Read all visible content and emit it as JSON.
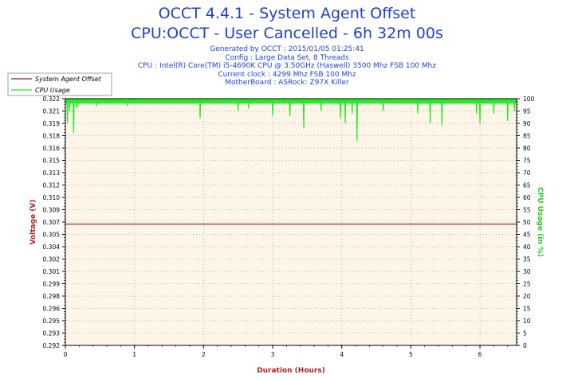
{
  "header": {
    "title": "OCCT 4.4.1 - System Agent Offset",
    "subtitle": "CPU:OCCT - User Cancelled - 6h 32m 00s",
    "info_lines": [
      "Generated by OCCT : 2015/01/05 01:25:41",
      "Config : Large Data Set, 8 Threads",
      "CPU : Intel(R) Core(TM) i5-4690K CPU @ 3.50GHz (Haswell) 3500 Mhz FSB 100 Mhz",
      "Current clock : 4299 Mhz FSB 100 Mhz",
      "MotherBoard : ASRock: Z97X Killer"
    ]
  },
  "colors": {
    "title": "#1f3fd0",
    "voltage_series": "#8b2020",
    "cpu_series": "#22ee22",
    "plot_bg": "#fdf5e8",
    "left_axis_label": "#b02020",
    "right_axis_label": "#22cc22",
    "x_axis_label": "#b02020"
  },
  "chart_data": {
    "type": "line",
    "xlabel": "Duration (Hours)",
    "ylabel": "Voltage (V)",
    "y2label": "CPU Usage (in %)",
    "xlim": [
      0,
      6.53
    ],
    "ylim": [
      0.292,
      0.3225
    ],
    "y2lim": [
      0,
      100
    ],
    "x_ticks": [
      "0",
      "1",
      "2",
      "3",
      "4",
      "5",
      "6"
    ],
    "y_ticks": [
      "0.322",
      "0.321",
      "0.319",
      "0.318",
      "0.316",
      "0.315",
      "0.313",
      "0.312",
      "0.310",
      "0.309",
      "0.307",
      "0.305",
      "0.304",
      "0.302",
      "0.301",
      "0.299",
      "0.298",
      "0.296",
      "0.295",
      "0.293",
      "0.292"
    ],
    "y2_ticks": [
      "100",
      "95",
      "90",
      "85",
      "80",
      "75",
      "70",
      "65",
      "60",
      "55",
      "50",
      "45",
      "40",
      "35",
      "30",
      "25",
      "20",
      "15",
      "10",
      "5",
      "0"
    ],
    "grid": true,
    "legend_position": "top-left",
    "series": [
      {
        "name": "System Agent Offset",
        "axis": "left",
        "x": [
          0,
          6.53
        ],
        "values": [
          0.307,
          0.307
        ]
      },
      {
        "name": "CPU Usage",
        "axis": "right",
        "baseline": 99,
        "dips": [
          {
            "x": 0.03,
            "value": 90
          },
          {
            "x": 0.06,
            "value": 95
          },
          {
            "x": 0.12,
            "value": 86
          },
          {
            "x": 0.17,
            "value": 96
          },
          {
            "x": 0.45,
            "value": 97
          },
          {
            "x": 0.9,
            "value": 97
          },
          {
            "x": 1.95,
            "value": 92
          },
          {
            "x": 2.5,
            "value": 95
          },
          {
            "x": 2.65,
            "value": 96
          },
          {
            "x": 3.0,
            "value": 93
          },
          {
            "x": 3.25,
            "value": 93
          },
          {
            "x": 3.45,
            "value": 88
          },
          {
            "x": 3.7,
            "value": 95
          },
          {
            "x": 3.98,
            "value": 92
          },
          {
            "x": 4.05,
            "value": 90
          },
          {
            "x": 4.15,
            "value": 94
          },
          {
            "x": 4.22,
            "value": 83
          },
          {
            "x": 4.6,
            "value": 95
          },
          {
            "x": 5.1,
            "value": 94
          },
          {
            "x": 5.28,
            "value": 90
          },
          {
            "x": 5.45,
            "value": 89
          },
          {
            "x": 5.95,
            "value": 94
          },
          {
            "x": 6.0,
            "value": 90
          },
          {
            "x": 6.2,
            "value": 94
          },
          {
            "x": 6.4,
            "value": 91
          },
          {
            "x": 6.5,
            "value": 95
          }
        ]
      }
    ]
  }
}
